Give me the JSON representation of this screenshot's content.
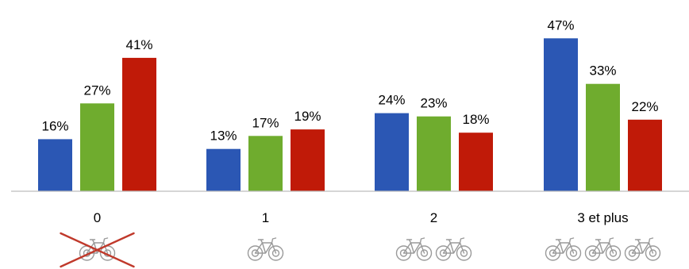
{
  "chart_data": {
    "type": "bar",
    "categories": [
      "0",
      "1",
      "2",
      "3 et plus"
    ],
    "series": [
      {
        "values": [
          16,
          13,
          24,
          47
        ],
        "labels": [
          "16%",
          "13%",
          "24%",
          "47%"
        ]
      },
      {
        "values": [
          27,
          17,
          23,
          33
        ],
        "labels": [
          "27%",
          "17%",
          "23%",
          "33%"
        ]
      },
      {
        "values": [
          41,
          19,
          18,
          22
        ],
        "labels": [
          "41%",
          "19%",
          "18%",
          "22%"
        ]
      }
    ],
    "series_colors": [
      "#2b57b4",
      "#6fac2e",
      "#c01a08"
    ],
    "value_unit": "%",
    "ylim": [
      0,
      50
    ],
    "grid": false,
    "legend": "none",
    "title": "",
    "xlabel": "",
    "ylabel": "",
    "category_icons": [
      {
        "icon": "bicycle-icon",
        "count": 1,
        "crossed_out": true
      },
      {
        "icon": "bicycle-icon",
        "count": 1,
        "crossed_out": false
      },
      {
        "icon": "bicycle-icon",
        "count": 2,
        "crossed_out": false
      },
      {
        "icon": "bicycle-icon",
        "count": 3,
        "crossed_out": false
      }
    ]
  }
}
